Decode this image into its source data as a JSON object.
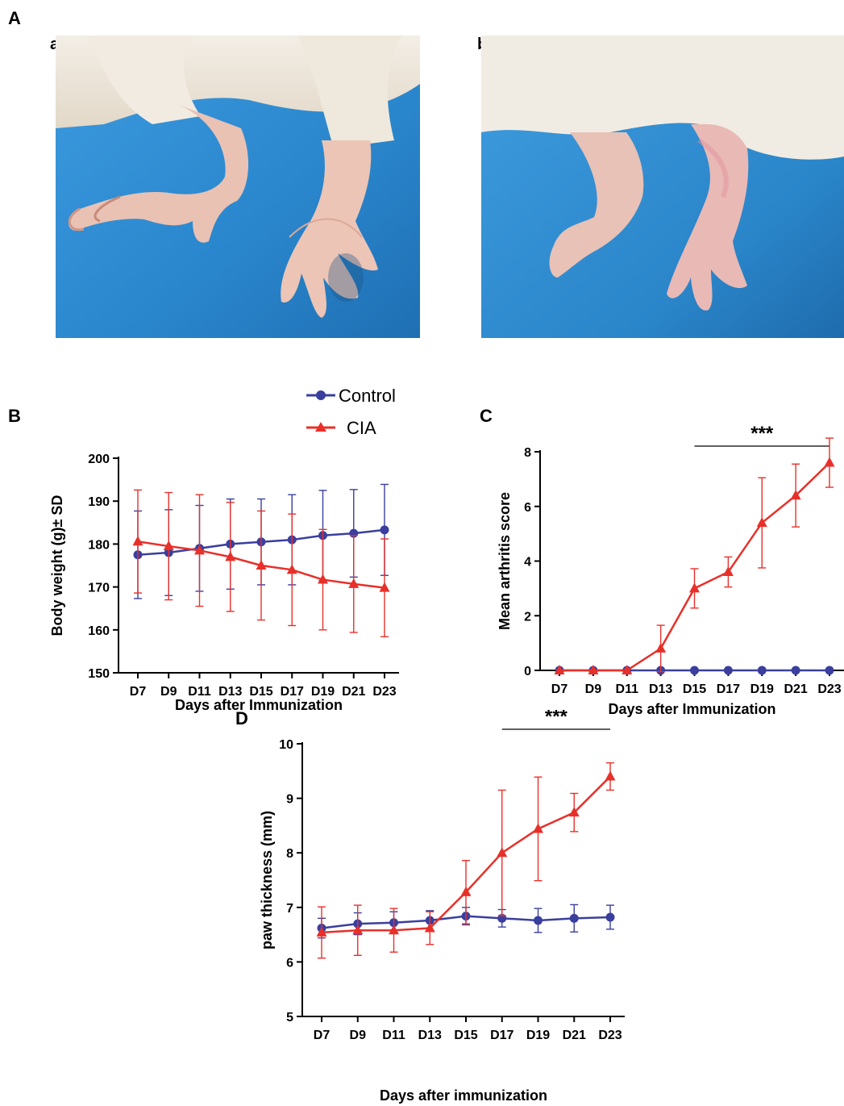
{
  "panels": {
    "A": "A",
    "a": "a",
    "b": "b",
    "B": "B",
    "C": "C",
    "D": "D"
  },
  "legend": {
    "control": "Control",
    "cia": "CIA",
    "control_color": "#3a3f9e",
    "cia_color": "#e8302a"
  },
  "photos": {
    "a": {
      "background": "#2f8fd0",
      "fur": "#efe9de",
      "paw": "#e8b2a4"
    },
    "b": {
      "background": "#2f8fd0",
      "fur": "#efe9de",
      "paw": "#e4b3b0"
    }
  },
  "chart_data": [
    {
      "id": "B",
      "type": "line",
      "xlabel": "Days after Immunization",
      "ylabel": "Body weight (g)± SD",
      "categories": [
        "D7",
        "D9",
        "D11",
        "D13",
        "D15",
        "D17",
        "D19",
        "D21",
        "D23"
      ],
      "ylim": [
        150,
        200
      ],
      "yticks": [
        150,
        160,
        170,
        180,
        190,
        200
      ],
      "significance": "",
      "series": [
        {
          "name": "Control",
          "marker": "circle",
          "color": "#3a3f9e",
          "values": [
            177.5,
            178,
            179,
            180,
            180.5,
            181,
            182,
            182.5,
            183.3
          ],
          "errors": [
            10.2,
            10,
            10,
            10.5,
            10,
            10.5,
            10.5,
            10.2,
            10.6
          ]
        },
        {
          "name": "CIA",
          "marker": "triangle",
          "color": "#e8302a",
          "values": [
            180.6,
            179.5,
            178.5,
            177,
            175,
            174,
            171.7,
            170.7,
            169.8
          ],
          "errors": [
            12,
            12.5,
            13,
            12.7,
            12.7,
            13,
            11.7,
            11.3,
            11.4
          ]
        }
      ]
    },
    {
      "id": "C",
      "type": "line",
      "xlabel": "Days after Immunization",
      "ylabel": "Mean arthritis score",
      "categories": [
        "D7",
        "D9",
        "D11",
        "D13",
        "D15",
        "D17",
        "D19",
        "D21",
        "D23"
      ],
      "ylim": [
        0,
        8
      ],
      "yticks": [
        0,
        2,
        4,
        6,
        8
      ],
      "significance": "***",
      "sig_span": [
        4,
        8
      ],
      "series": [
        {
          "name": "Control",
          "marker": "circle",
          "color": "#3a3f9e",
          "values": [
            0,
            0,
            0,
            0,
            0,
            0,
            0,
            0,
            0
          ],
          "errors": [
            0,
            0,
            0,
            0,
            0,
            0,
            0,
            0,
            0
          ]
        },
        {
          "name": "CIA",
          "marker": "triangle",
          "color": "#e8302a",
          "values": [
            0,
            0,
            0,
            0.8,
            3.0,
            3.6,
            5.4,
            6.4,
            7.6
          ],
          "errors": [
            0,
            0,
            0,
            0.85,
            0.72,
            0.55,
            1.65,
            1.15,
            0.9
          ]
        }
      ]
    },
    {
      "id": "D",
      "type": "line",
      "xlabel": "Days after immunization",
      "ylabel": "paw thickness (mm)",
      "categories": [
        "D7",
        "D9",
        "D11",
        "D13",
        "D15",
        "D17",
        "D19",
        "D21",
        "D23"
      ],
      "ylim": [
        5,
        10
      ],
      "yticks": [
        5,
        6,
        7,
        8,
        9,
        10
      ],
      "significance": "***",
      "sig_span": [
        5,
        8
      ],
      "series": [
        {
          "name": "Control",
          "marker": "circle",
          "color": "#3a3f9e",
          "values": [
            6.62,
            6.7,
            6.72,
            6.76,
            6.84,
            6.8,
            6.76,
            6.8,
            6.82
          ],
          "errors": [
            0.18,
            0.2,
            0.2,
            0.18,
            0.16,
            0.16,
            0.22,
            0.25,
            0.22
          ]
        },
        {
          "name": "CIA",
          "marker": "triangle",
          "color": "#e8302a",
          "values": [
            6.54,
            6.58,
            6.58,
            6.62,
            7.28,
            8.0,
            8.44,
            8.74,
            9.4
          ],
          "errors": [
            0.47,
            0.46,
            0.4,
            0.3,
            0.58,
            1.15,
            0.95,
            0.35,
            0.25
          ]
        }
      ]
    }
  ]
}
